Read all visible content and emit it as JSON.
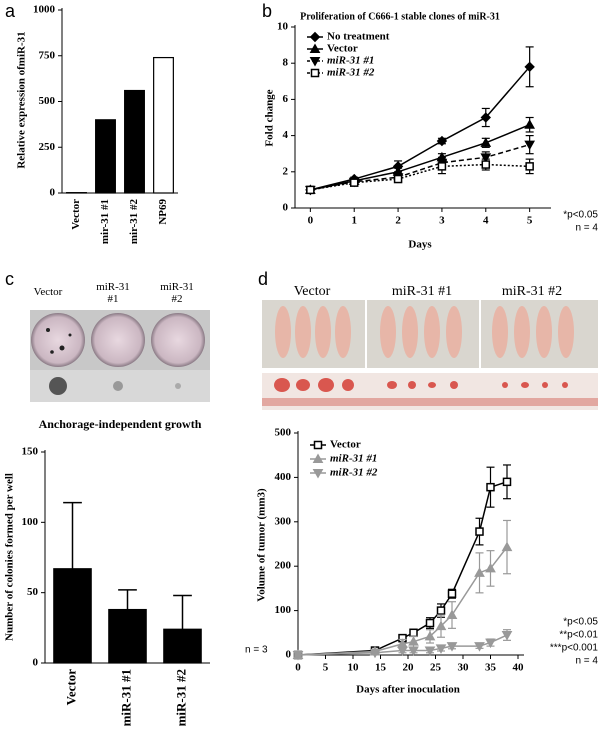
{
  "chart_data": [
    {
      "type": "bar",
      "label": "a",
      "ylabel": "Relative expression ofmiR-31",
      "categories": [
        "Vector",
        "mir-31 #1",
        "mir-31 #2",
        "NP69"
      ],
      "values": [
        2,
        400,
        560,
        740
      ],
      "colors": [
        "#000000",
        "#000000",
        "#000000",
        "#ffffff"
      ],
      "ylim": [
        0,
        1000
      ],
      "yticks": [
        0,
        250,
        500,
        750,
        1000
      ]
    },
    {
      "type": "line",
      "label": "b",
      "title": "Proliferation of C666-1 stable clones of miR-31",
      "xlabel": "Days",
      "ylabel": "Fold change",
      "x": [
        0,
        1,
        2,
        3,
        4,
        5
      ],
      "xlim": [
        -0.35,
        5.35
      ],
      "xticks": [
        0,
        1,
        2,
        3,
        4,
        5
      ],
      "ylim": [
        0,
        10
      ],
      "yticks": [
        0,
        2,
        4,
        6,
        8,
        10
      ],
      "series": [
        {
          "name": "No treatment",
          "color": "#000000",
          "marker": "diamond",
          "dashed": false,
          "values": [
            1,
            1.6,
            2.3,
            3.7,
            5.0,
            7.8
          ],
          "errors": [
            0.05,
            0.1,
            0.3,
            0.15,
            0.5,
            1.1
          ]
        },
        {
          "name": "Vector",
          "color": "#000000",
          "marker": "triangle",
          "dashed": false,
          "values": [
            1,
            1.5,
            2.0,
            2.8,
            3.6,
            4.6
          ],
          "errors": [
            0.05,
            0.1,
            0.2,
            0.2,
            0.25,
            0.4
          ]
        },
        {
          "name": "miR-31 #1",
          "color": "#000000",
          "marker": "triangle-down",
          "dashed": true,
          "values": [
            1,
            1.45,
            1.7,
            2.5,
            2.8,
            3.5
          ],
          "errors": [
            0.05,
            0.1,
            0.15,
            0.3,
            0.3,
            0.5
          ]
        },
        {
          "name": "miR-31 #2",
          "color": "#000000",
          "marker": "square",
          "dashed": true,
          "values": [
            1,
            1.4,
            1.6,
            2.3,
            2.4,
            2.3
          ],
          "errors": [
            0.05,
            0.1,
            0.15,
            0.4,
            0.3,
            0.4
          ]
        }
      ],
      "annotations": [
        "*p<0.05",
        "n = 4"
      ]
    },
    {
      "type": "bar",
      "label": "c",
      "title": "Anchorage-independent growth",
      "ylabel": "Number of colonies formed per well",
      "photo_labels": [
        "Vector",
        "miR-31 #1",
        "miR-31 #2"
      ],
      "categories": [
        "Vector",
        "miR-31 #1",
        "miR-31 #2"
      ],
      "values": [
        67,
        38,
        24
      ],
      "errors": [
        47,
        14,
        24
      ],
      "colors": [
        "#000000",
        "#000000",
        "#000000"
      ],
      "ylim": [
        0,
        150
      ],
      "yticks": [
        0,
        50,
        100,
        150
      ],
      "annotations": [
        "n = 3"
      ]
    },
    {
      "type": "line",
      "label": "d",
      "xlabel": "Days after inoculation",
      "ylabel": "Volume of tumor (mm3)",
      "photo_labels": [
        "Vector",
        "miR-31 #1",
        "miR-31 #2"
      ],
      "x": [
        0,
        14,
        19,
        21,
        24,
        26,
        28,
        33,
        35,
        38
      ],
      "xlim": [
        0,
        40
      ],
      "xticks": [
        0,
        5,
        10,
        15,
        20,
        25,
        30,
        35,
        40
      ],
      "ylim": [
        0,
        500
      ],
      "yticks": [
        0,
        100,
        200,
        300,
        400,
        500
      ],
      "series": [
        {
          "name": "Vector",
          "color": "#000000",
          "marker": "square",
          "dashed": false,
          "values": [
            0,
            10,
            38,
            50,
            72,
            100,
            138,
            278,
            378,
            390
          ],
          "errors": [
            0,
            5,
            8,
            8,
            12,
            15,
            10,
            30,
            45,
            38
          ]
        },
        {
          "name": "miR-31 #1",
          "color": "#999999",
          "marker": "triangle",
          "dashed": false,
          "values": [
            0,
            8,
            25,
            30,
            42,
            65,
            90,
            185,
            195,
            243
          ],
          "errors": [
            0,
            4,
            10,
            12,
            15,
            25,
            30,
            45,
            40,
            60
          ]
        },
        {
          "name": "miR-31 #2",
          "color": "#999999",
          "marker": "triangle-down",
          "dashed": false,
          "values": [
            0,
            5,
            10,
            10,
            10,
            15,
            20,
            20,
            28,
            45
          ],
          "errors": [
            0,
            3,
            5,
            5,
            5,
            6,
            6,
            5,
            8,
            12
          ]
        }
      ],
      "annotations": [
        "*p<0.05",
        "**p<0.01",
        "***p<0.001",
        "n = 4"
      ]
    }
  ]
}
